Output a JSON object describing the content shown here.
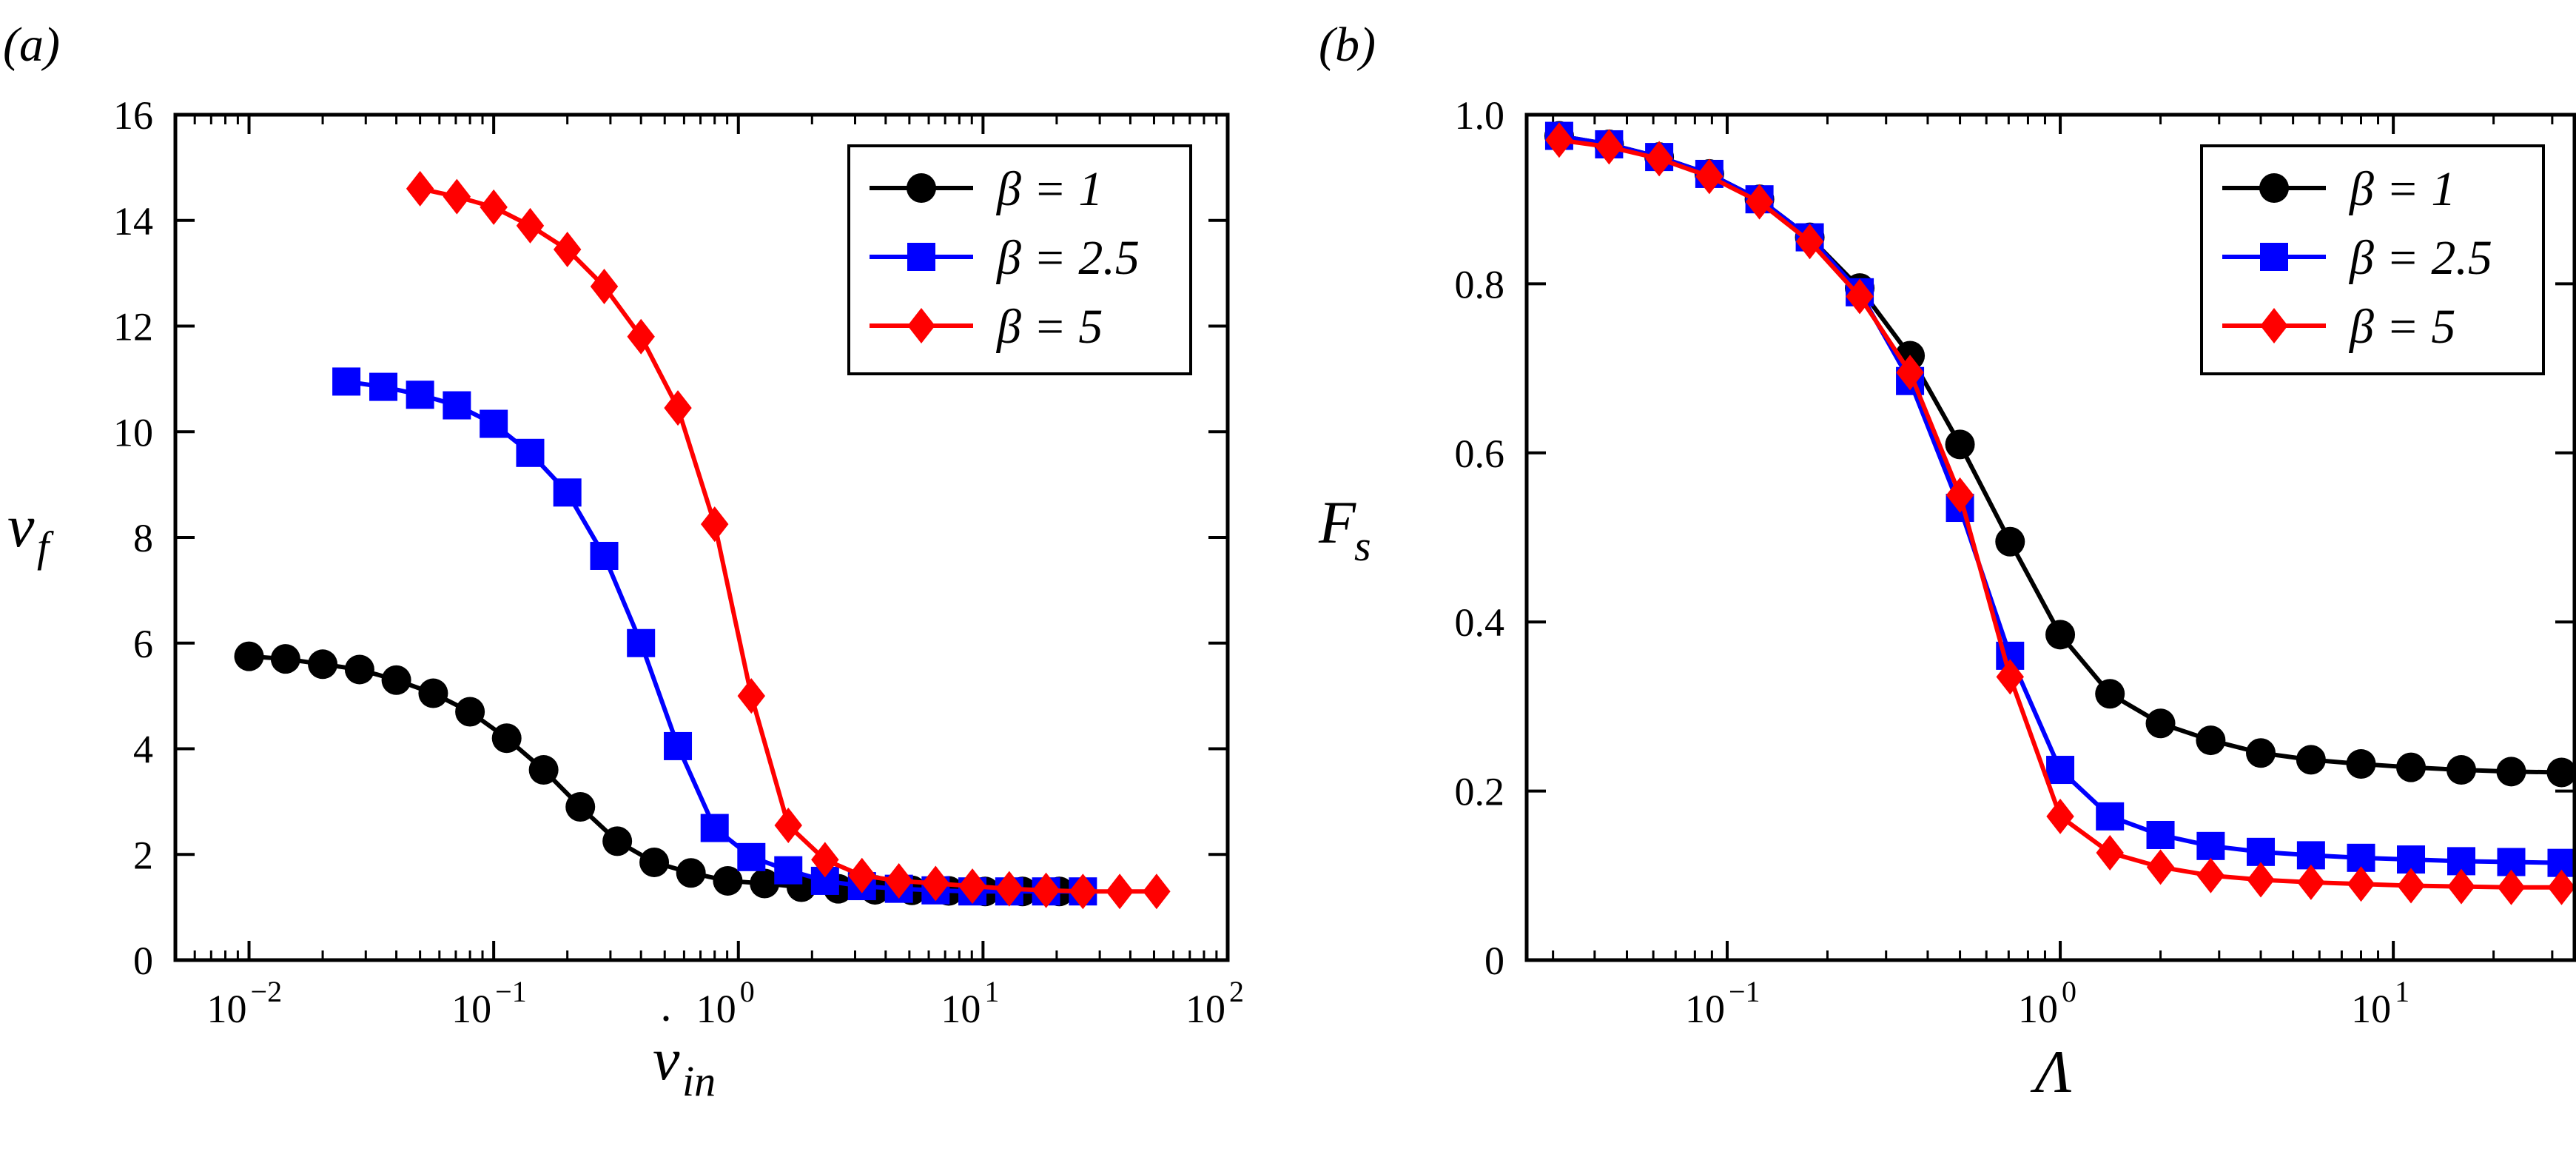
{
  "chart_data": [
    {
      "panel": "(a)",
      "type": "line",
      "xscale": "log",
      "xlabel": "v̇_in",
      "ylabel": "v_f",
      "xlim": [
        0.005,
        100
      ],
      "ylim": [
        0,
        16
      ],
      "x_ticks": [
        0.01,
        0.1,
        1,
        10,
        100
      ],
      "x_tick_labels": [
        {
          "b": "10",
          "e": "−2"
        },
        {
          "b": "10",
          "e": "−1"
        },
        {
          "b": "10",
          "e": "0"
        },
        {
          "b": "10",
          "e": "1"
        },
        {
          "b": "10",
          "e": "2"
        }
      ],
      "y_ticks": [
        0,
        2,
        4,
        6,
        8,
        10,
        12,
        14,
        16
      ],
      "y_tick_labels": [
        "0",
        "2",
        "4",
        "6",
        "8",
        "10",
        "12",
        "14",
        "16"
      ],
      "legend": "top-right",
      "series": [
        {
          "name": "β = 1",
          "color": "#000000",
          "marker": "circle",
          "x": [
            0.01,
            0.0141,
            0.02,
            0.0283,
            0.04,
            0.0566,
            0.08,
            0.113,
            0.16,
            0.226,
            0.32,
            0.453,
            0.64,
            0.905,
            1.28,
            1.81,
            2.56,
            3.62,
            5.12,
            7.24,
            10.2,
            14.5,
            20.5
          ],
          "y": [
            5.75,
            5.7,
            5.6,
            5.5,
            5.3,
            5.05,
            4.7,
            4.2,
            3.6,
            2.9,
            2.25,
            1.85,
            1.65,
            1.5,
            1.45,
            1.38,
            1.35,
            1.33,
            1.32,
            1.31,
            1.3,
            1.3,
            1.3
          ]
        },
        {
          "name": "β = 2.5",
          "color": "#0000ff",
          "marker": "square",
          "x": [
            0.025,
            0.0354,
            0.05,
            0.0707,
            0.1,
            0.141,
            0.2,
            0.283,
            0.4,
            0.566,
            0.8,
            1.13,
            1.6,
            2.26,
            3.2,
            4.53,
            6.4,
            9.05,
            12.8,
            18.1,
            25.6
          ],
          "y": [
            10.95,
            10.85,
            10.7,
            10.5,
            10.15,
            9.6,
            8.85,
            7.65,
            6.0,
            4.05,
            2.5,
            1.95,
            1.7,
            1.5,
            1.4,
            1.35,
            1.32,
            1.3,
            1.3,
            1.3,
            1.3
          ]
        },
        {
          "name": "β = 5",
          "color": "#ff0000",
          "marker": "diamond",
          "x": [
            0.05,
            0.0707,
            0.1,
            0.141,
            0.2,
            0.283,
            0.4,
            0.566,
            0.8,
            1.13,
            1.6,
            2.26,
            3.2,
            4.53,
            6.4,
            9.05,
            12.8,
            18.1,
            25.6,
            36.2,
            51.2
          ],
          "y": [
            14.6,
            14.45,
            14.25,
            13.9,
            13.45,
            12.75,
            11.8,
            10.45,
            8.25,
            5.0,
            2.55,
            1.9,
            1.6,
            1.5,
            1.45,
            1.4,
            1.35,
            1.32,
            1.3,
            1.3,
            1.3
          ]
        }
      ]
    },
    {
      "panel": "(b)",
      "type": "line",
      "xscale": "log",
      "xlabel": "Λ",
      "ylabel": "F_s",
      "xlim": [
        0.025,
        35
      ],
      "ylim": [
        0,
        1.0
      ],
      "x_ticks": [
        0.1,
        1,
        10
      ],
      "x_tick_labels": [
        {
          "b": "10",
          "e": "−1"
        },
        {
          "b": "10",
          "e": "0"
        },
        {
          "b": "10",
          "e": "1"
        }
      ],
      "y_ticks": [
        0,
        0.2,
        0.4,
        0.6,
        0.8,
        1.0
      ],
      "y_tick_labels": [
        "0",
        "0.2",
        "0.4",
        "0.6",
        "0.8",
        "1.0"
      ],
      "legend": "top-right",
      "series": [
        {
          "name": "β = 1",
          "color": "#000000",
          "marker": "circle",
          "x": [
            0.0313,
            0.0442,
            0.0625,
            0.0884,
            0.125,
            0.177,
            0.25,
            0.354,
            0.5,
            0.707,
            1.0,
            1.41,
            2.0,
            2.83,
            4.0,
            5.66,
            8.0,
            11.3,
            16.0,
            22.6,
            32.0
          ],
          "y": [
            0.975,
            0.965,
            0.95,
            0.93,
            0.9,
            0.855,
            0.795,
            0.715,
            0.61,
            0.495,
            0.385,
            0.315,
            0.28,
            0.26,
            0.245,
            0.237,
            0.232,
            0.228,
            0.225,
            0.223,
            0.222
          ]
        },
        {
          "name": "β = 2.5",
          "color": "#0000ff",
          "marker": "square",
          "x": [
            0.0313,
            0.0442,
            0.0625,
            0.0884,
            0.125,
            0.177,
            0.25,
            0.354,
            0.5,
            0.707,
            1.0,
            1.41,
            2.0,
            2.83,
            4.0,
            5.66,
            8.0,
            11.3,
            16.0,
            22.6,
            32.0
          ],
          "y": [
            0.975,
            0.965,
            0.95,
            0.93,
            0.9,
            0.855,
            0.79,
            0.685,
            0.535,
            0.36,
            0.225,
            0.17,
            0.148,
            0.135,
            0.128,
            0.124,
            0.121,
            0.119,
            0.117,
            0.116,
            0.115
          ]
        },
        {
          "name": "β = 5",
          "color": "#ff0000",
          "marker": "diamond",
          "x": [
            0.0313,
            0.0442,
            0.0625,
            0.0884,
            0.125,
            0.177,
            0.25,
            0.354,
            0.5,
            0.707,
            1.0,
            1.41,
            2.0,
            2.83,
            4.0,
            5.66,
            8.0,
            11.3,
            16.0,
            22.6,
            32.0
          ],
          "y": [
            0.97,
            0.962,
            0.948,
            0.927,
            0.897,
            0.85,
            0.785,
            0.695,
            0.55,
            0.335,
            0.17,
            0.127,
            0.11,
            0.1,
            0.095,
            0.092,
            0.09,
            0.088,
            0.087,
            0.086,
            0.086
          ]
        }
      ]
    }
  ]
}
